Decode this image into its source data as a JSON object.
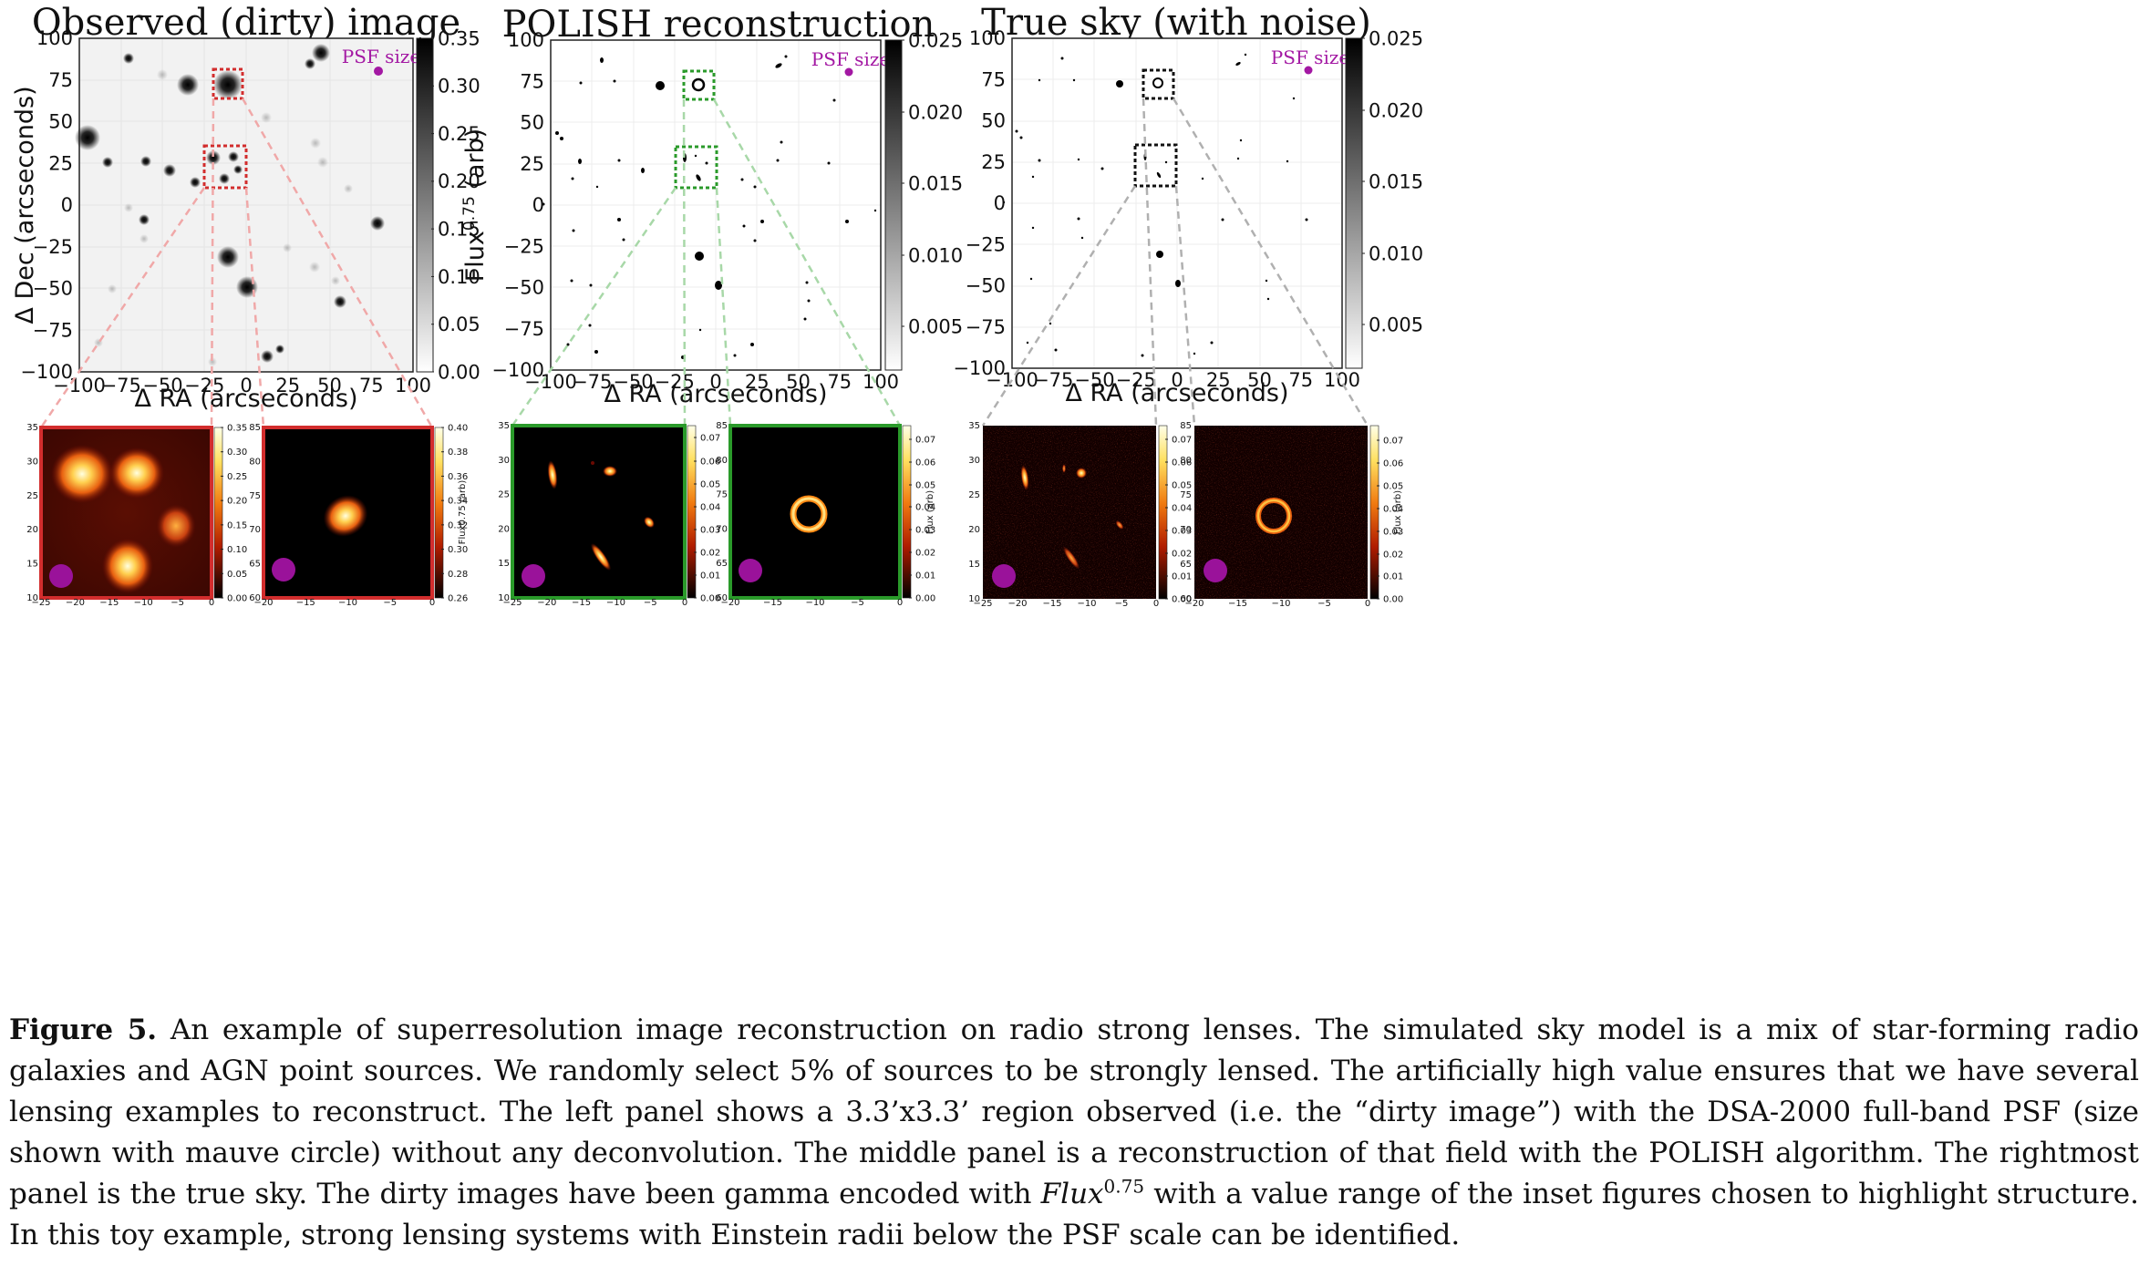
{
  "colors": {
    "observed": "#d22d2d",
    "polish": "#2a9a2a",
    "truth": "#111111",
    "psf": "#a318a3",
    "zoom_obs": "#f0a8a8",
    "zoom_pol": "#a8d8a8",
    "zoom_true": "#b0b0b0"
  },
  "panels": [
    {
      "title": "Observed (dirty) image",
      "psf_label": "PSF size",
      "xlabel": "Δ RA (arcseconds)",
      "ylabel": "Δ Dec (arcseconds)",
      "cbar_label": "Flux0.75 (arb)",
      "cbar_ticks": [
        "0.35",
        "0.30",
        "0.25",
        "0.20",
        "0.15",
        "0.10",
        "0.05",
        "0.00"
      ],
      "inset_left_cbar": [
        "0.35",
        "0.30",
        "0.25",
        "0.20",
        "0.15",
        "0.10",
        "0.05",
        "0.00"
      ],
      "inset_right_cbar": [
        "0.40",
        "0.38",
        "0.36",
        "0.34",
        "0.32",
        "0.30",
        "0.28",
        "0.26"
      ],
      "inset_cbar_label": "Flux0.75 (arb)"
    },
    {
      "title": "POLISH reconstruction",
      "psf_label": "PSF size",
      "xlabel": "Δ RA (arcseconds)",
      "cbar_ticks": [
        "0.025",
        "0.020",
        "0.015",
        "0.010",
        "0.005"
      ],
      "inset_left_cbar": [
        "0.07",
        "0.06",
        "0.05",
        "0.04",
        "0.03",
        "0.02",
        "0.01",
        "0.00"
      ],
      "inset_right_cbar": [
        "0.07",
        "0.06",
        "0.05",
        "0.04",
        "0.03",
        "0.02",
        "0.01",
        "0.00"
      ],
      "inset_cbar_label": "Flux (arb)"
    },
    {
      "title": "True sky (with noise)",
      "psf_label": "PSF size",
      "xlabel": "Δ RA (arcseconds)",
      "cbar_ticks": [
        "0.025",
        "0.020",
        "0.015",
        "0.010",
        "0.005"
      ],
      "inset_left_cbar": [
        "0.07",
        "0.06",
        "0.05",
        "0.04",
        "0.03",
        "0.02",
        "0.01",
        "0.00"
      ],
      "inset_right_cbar": [
        "0.07",
        "0.06",
        "0.05",
        "0.04",
        "0.03",
        "0.02",
        "0.01",
        "0.00"
      ],
      "inset_cbar_label": "Flux (arb)"
    }
  ],
  "axis_ticks": [
    "−100",
    "−75",
    "−50",
    "−25",
    "0",
    "25",
    "50",
    "75",
    "100"
  ],
  "inset_x_ticks_left": [
    "−25",
    "−20",
    "−15",
    "−10",
    "−5",
    "0"
  ],
  "inset_y_ticks_left": [
    "35",
    "30",
    "25",
    "20",
    "15",
    "10"
  ],
  "inset_x_ticks_right": [
    "−20",
    "−15",
    "−10",
    "−5",
    "0"
  ],
  "inset_y_ticks_right": [
    "85",
    "80",
    "75",
    "70",
    "65",
    "60"
  ],
  "caption": {
    "label": "Figure 5.",
    "part1": " An example of superresolution image reconstruction on radio strong lenses. The simulated sky model is a mix of star-forming radio galaxies and AGN point sources. We randomly select 5% of sources to be strongly lensed. The artificially high value ensures that we have several lensing examples to reconstruct. The left panel shows a 3.3’x3.3’ region observed (i.e. the “dirty image”) with the DSA-2000 full-band PSF (size shown with mauve circle) without any deconvolution. The middle panel is a reconstruction of that field with the POLISH algorithm. The rightmost panel is the true sky. The dirty images have been gamma encoded with ",
    "math": "Flux",
    "exponent": "0.75",
    "part2": " with a value range of the inset figures chosen to highlight structure. In this toy example, strong lensing systems with Einstein radii below the PSF scale can be identified."
  }
}
